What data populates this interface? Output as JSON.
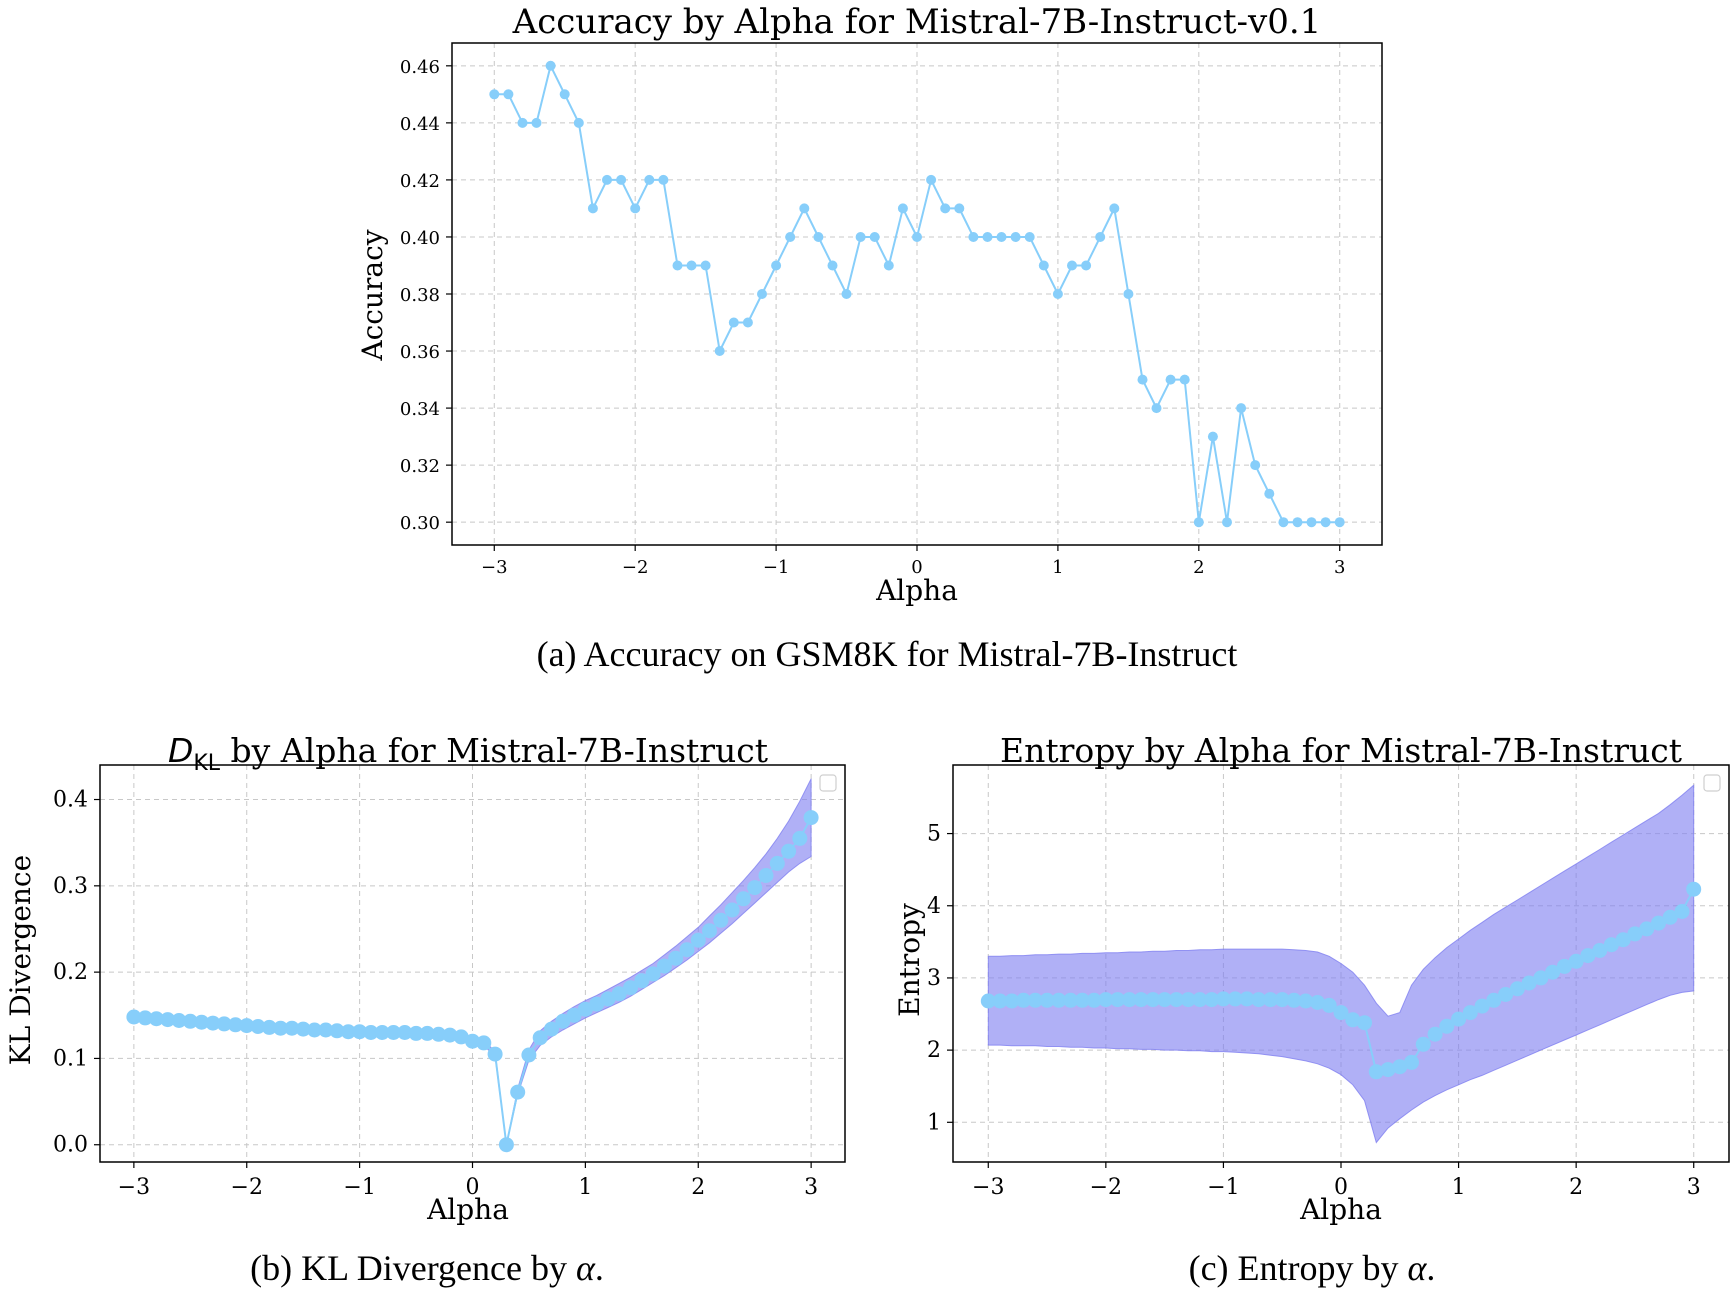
{
  "captions": {
    "a": "(a) Accuracy on GSM8K for Mistral-7B-Instruct",
    "b_prefix": "(b) KL Divergence by ",
    "c_prefix": "(c) Entropy by ",
    "alpha_symbol": "α",
    "suffix": "."
  },
  "chart_data": [
    {
      "id": "accuracy",
      "type": "line",
      "title": "Accuracy by Alpha for Mistral-7B-Instruct-v0.1",
      "xlabel": "Alpha",
      "ylabel": "Accuracy",
      "xlim": [
        -3.3,
        3.3
      ],
      "ylim": [
        0.292,
        0.468
      ],
      "xticks": [
        -3,
        -2,
        -1,
        0,
        1,
        2,
        3
      ],
      "xtick_labels": [
        "−3",
        "−2",
        "−1",
        "0",
        "1",
        "2",
        "3"
      ],
      "yticks": [
        0.3,
        0.32,
        0.34,
        0.36,
        0.38,
        0.4,
        0.42,
        0.44,
        0.46
      ],
      "ytick_labels": [
        "0.30",
        "0.32",
        "0.34",
        "0.36",
        "0.38",
        "0.40",
        "0.42",
        "0.44",
        "0.46"
      ],
      "grid": true,
      "color": "#87cefa",
      "x_start": -3.0,
      "x_step": 0.1,
      "values": [
        0.45,
        0.45,
        0.44,
        0.44,
        0.46,
        0.45,
        0.44,
        0.41,
        0.42,
        0.42,
        0.41,
        0.42,
        0.42,
        0.39,
        0.39,
        0.39,
        0.36,
        0.37,
        0.37,
        0.38,
        0.39,
        0.4,
        0.41,
        0.4,
        0.39,
        0.38,
        0.4,
        0.4,
        0.39,
        0.41,
        0.4,
        0.42,
        0.41,
        0.41,
        0.4,
        0.4,
        0.4,
        0.4,
        0.4,
        0.39,
        0.38,
        0.39,
        0.39,
        0.4,
        0.41,
        0.38,
        0.35,
        0.34,
        0.35,
        0.35,
        0.3,
        0.33,
        0.3,
        0.34,
        0.32,
        0.31,
        0.3,
        0.3,
        0.3,
        0.3,
        0.3
      ]
    },
    {
      "id": "kl",
      "type": "line",
      "title_math": "D",
      "title_sub": "KL",
      "title_rest": " by Alpha for Mistral-7B-Instruct",
      "xlabel": "Alpha",
      "ylabel": "KL Divergence",
      "xlim": [
        -3.3,
        3.3
      ],
      "ylim": [
        -0.02,
        0.44
      ],
      "xticks": [
        -3,
        -2,
        -1,
        0,
        1,
        2,
        3
      ],
      "xtick_labels": [
        "−3",
        "−2",
        "−1",
        "0",
        "1",
        "2",
        "3"
      ],
      "yticks": [
        0.0,
        0.1,
        0.2,
        0.3,
        0.4
      ],
      "ytick_labels": [
        "0.0",
        "0.1",
        "0.2",
        "0.3",
        "0.4"
      ],
      "grid": true,
      "legend": "top-right (empty)",
      "color": "#87cefa",
      "band_color": "#8080f0",
      "x_start": -3.0,
      "x_step": 0.1,
      "values": [
        0.148,
        0.147,
        0.146,
        0.145,
        0.144,
        0.143,
        0.142,
        0.141,
        0.14,
        0.139,
        0.138,
        0.137,
        0.136,
        0.135,
        0.135,
        0.134,
        0.133,
        0.133,
        0.132,
        0.131,
        0.131,
        0.13,
        0.13,
        0.13,
        0.13,
        0.129,
        0.129,
        0.128,
        0.127,
        0.125,
        0.12,
        0.118,
        0.105,
        0.0,
        0.061,
        0.104,
        0.124,
        0.134,
        0.143,
        0.15,
        0.157,
        0.163,
        0.169,
        0.175,
        0.182,
        0.19,
        0.198,
        0.207,
        0.216,
        0.226,
        0.237,
        0.248,
        0.26,
        0.272,
        0.285,
        0.298,
        0.312,
        0.326,
        0.34,
        0.355,
        0.379
      ],
      "band_low": [
        0.145,
        0.144,
        0.143,
        0.142,
        0.141,
        0.14,
        0.139,
        0.138,
        0.137,
        0.136,
        0.135,
        0.134,
        0.133,
        0.132,
        0.132,
        0.131,
        0.13,
        0.13,
        0.129,
        0.128,
        0.128,
        0.127,
        0.127,
        0.127,
        0.127,
        0.126,
        0.126,
        0.125,
        0.124,
        0.122,
        0.117,
        0.115,
        0.102,
        0.0,
        0.058,
        0.098,
        0.115,
        0.125,
        0.133,
        0.14,
        0.147,
        0.153,
        0.159,
        0.165,
        0.172,
        0.18,
        0.188,
        0.196,
        0.205,
        0.214,
        0.224,
        0.234,
        0.245,
        0.256,
        0.268,
        0.28,
        0.292,
        0.304,
        0.316,
        0.326,
        0.334
      ],
      "band_high": [
        0.151,
        0.15,
        0.149,
        0.148,
        0.147,
        0.146,
        0.145,
        0.144,
        0.143,
        0.142,
        0.141,
        0.14,
        0.139,
        0.138,
        0.138,
        0.137,
        0.136,
        0.136,
        0.135,
        0.134,
        0.134,
        0.133,
        0.133,
        0.133,
        0.133,
        0.132,
        0.132,
        0.131,
        0.13,
        0.128,
        0.123,
        0.121,
        0.108,
        0.0,
        0.065,
        0.11,
        0.132,
        0.143,
        0.152,
        0.16,
        0.167,
        0.173,
        0.18,
        0.187,
        0.194,
        0.202,
        0.21,
        0.22,
        0.23,
        0.241,
        0.252,
        0.265,
        0.278,
        0.292,
        0.306,
        0.321,
        0.337,
        0.355,
        0.375,
        0.398,
        0.424
      ]
    },
    {
      "id": "entropy",
      "type": "line",
      "title": "Entropy by Alpha for Mistral-7B-Instruct",
      "xlabel": "Alpha",
      "ylabel": "Entropy",
      "xlim": [
        -3.3,
        3.3
      ],
      "ylim": [
        0.45,
        5.95
      ],
      "xticks": [
        -3,
        -2,
        -1,
        0,
        1,
        2,
        3
      ],
      "xtick_labels": [
        "−3",
        "−2",
        "−1",
        "0",
        "1",
        "2",
        "3"
      ],
      "yticks": [
        1,
        2,
        3,
        4,
        5
      ],
      "ytick_labels": [
        "1",
        "2",
        "3",
        "4",
        "5"
      ],
      "grid": true,
      "legend": "top-right (empty)",
      "color": "#87cefa",
      "band_color": "#8080f0",
      "x_start": -3.0,
      "x_step": 0.1,
      "values": [
        2.68,
        2.68,
        2.68,
        2.69,
        2.69,
        2.69,
        2.69,
        2.69,
        2.69,
        2.69,
        2.7,
        2.7,
        2.7,
        2.7,
        2.7,
        2.7,
        2.7,
        2.7,
        2.7,
        2.7,
        2.71,
        2.71,
        2.71,
        2.7,
        2.7,
        2.7,
        2.69,
        2.68,
        2.66,
        2.62,
        2.52,
        2.42,
        2.38,
        1.7,
        1.73,
        1.77,
        1.83,
        2.08,
        2.22,
        2.33,
        2.43,
        2.52,
        2.61,
        2.69,
        2.77,
        2.85,
        2.93,
        3.0,
        3.08,
        3.16,
        3.23,
        3.31,
        3.38,
        3.46,
        3.53,
        3.61,
        3.68,
        3.76,
        3.84,
        3.92,
        4.23
      ],
      "band_low": [
        2.07,
        2.07,
        2.06,
        2.06,
        2.06,
        2.05,
        2.05,
        2.04,
        2.04,
        2.03,
        2.03,
        2.02,
        2.02,
        2.01,
        2.01,
        2.0,
        2.0,
        1.99,
        1.99,
        1.98,
        1.98,
        1.97,
        1.96,
        1.95,
        1.93,
        1.91,
        1.88,
        1.85,
        1.81,
        1.75,
        1.66,
        1.52,
        1.3,
        0.72,
        0.92,
        1.05,
        1.17,
        1.28,
        1.37,
        1.45,
        1.52,
        1.59,
        1.65,
        1.72,
        1.79,
        1.86,
        1.93,
        2.0,
        2.07,
        2.14,
        2.21,
        2.28,
        2.35,
        2.42,
        2.49,
        2.56,
        2.63,
        2.7,
        2.76,
        2.8,
        2.82
      ],
      "band_high": [
        3.3,
        3.3,
        3.31,
        3.31,
        3.32,
        3.32,
        3.33,
        3.33,
        3.34,
        3.34,
        3.35,
        3.35,
        3.36,
        3.36,
        3.37,
        3.37,
        3.38,
        3.38,
        3.39,
        3.39,
        3.4,
        3.4,
        3.4,
        3.4,
        3.4,
        3.4,
        3.39,
        3.38,
        3.36,
        3.3,
        3.2,
        3.08,
        2.9,
        2.65,
        2.47,
        2.52,
        2.9,
        3.12,
        3.28,
        3.42,
        3.54,
        3.66,
        3.77,
        3.88,
        3.98,
        4.08,
        4.18,
        4.28,
        4.38,
        4.48,
        4.58,
        4.68,
        4.78,
        4.88,
        4.98,
        5.08,
        5.18,
        5.28,
        5.4,
        5.53,
        5.67
      ]
    }
  ]
}
